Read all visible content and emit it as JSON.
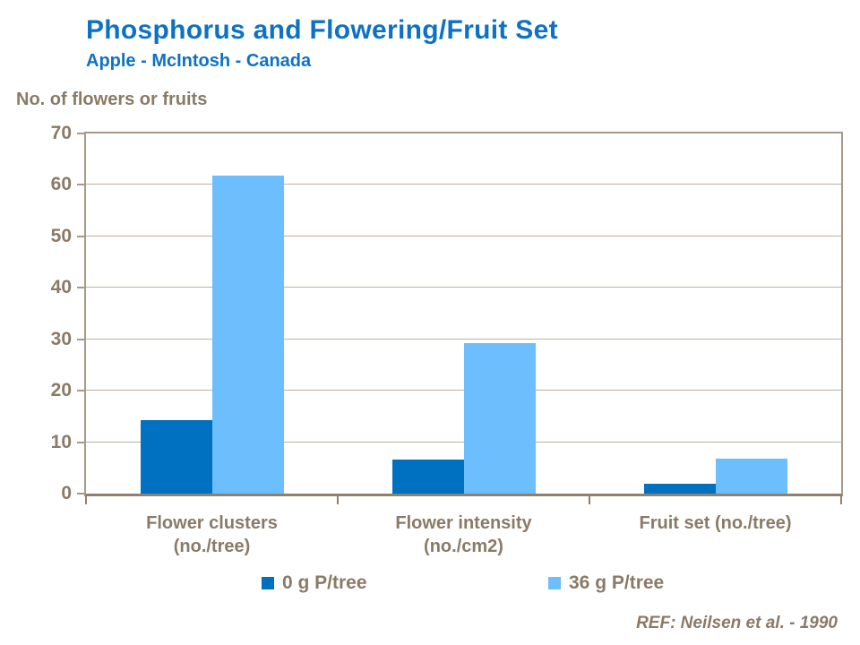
{
  "header": {
    "title": "Phosphorus and Flowering/Fruit Set",
    "subtitle": "Apple - McIntosh - Canada"
  },
  "footer": {
    "reference": "REF: Neilsen et al. - 1990"
  },
  "colors": {
    "title_blue": "#0D72C4",
    "text_taupe": "#8A7A66",
    "gridline": "#BCB0A2",
    "plot_border": "#A79A8A",
    "bottom_axis": "#8F8070",
    "series_dark_blue": "#0070C0",
    "series_light_blue": "#6CBEFC"
  },
  "chart_data": {
    "type": "bar",
    "title": "Phosphorus and Flowering/Fruit Set",
    "subtitle": "Apple - McIntosh - Canada",
    "ylabel": "No. of flowers or fruits",
    "xlabel": "",
    "ylim": [
      0,
      70
    ],
    "ytick_step": 10,
    "yticks": [
      0,
      10,
      20,
      30,
      40,
      50,
      60,
      70
    ],
    "grid": "horizontal",
    "legend_position": "bottom",
    "categories": [
      [
        "Flower clusters",
        "(no./tree)"
      ],
      [
        "Flower intensity",
        "(no./cm2)"
      ],
      [
        "Fruit set (no./tree)"
      ]
    ],
    "series": [
      {
        "name": "0 g P/tree",
        "color": "#0070C0",
        "values": [
          14.3,
          6.6,
          2.0
        ]
      },
      {
        "name": "36 g P/tree",
        "color": "#6CBEFC",
        "values": [
          61.8,
          29.2,
          6.8
        ]
      }
    ]
  }
}
